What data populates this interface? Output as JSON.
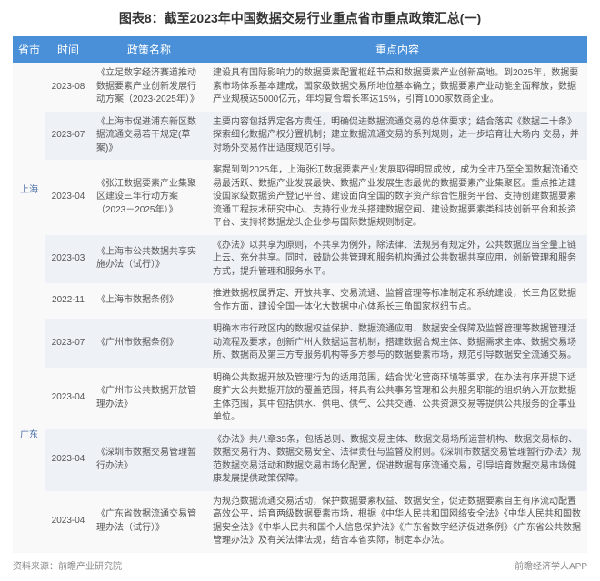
{
  "title": "图表8：截至2023年中国数据交易行业重点省市重点政策汇总(一)",
  "headers": {
    "province": "省市",
    "time": "时间",
    "policy": "政策名称",
    "content": "重点内容"
  },
  "provinces": {
    "shanghai": "上海",
    "guangdong": "广东"
  },
  "rows": [
    {
      "time": "2023-08",
      "policy": "《立足数字经济赛道推动数据要素产业创新发展行动方案（2023-2025年）》",
      "content": "建设具有国际影响力的数据要素配置枢纽节点和数据要素产业创新高地。到2025年，数据要素市场体系基本建成，国家级数据交易所地位基本确立；数据要素产业动能全面释放，数据产业规模达5000亿元，年均复合增长率达15%，引育1000家数商企业。",
      "shade": "light"
    },
    {
      "time": "2023-07",
      "policy": "《上海市促进浦东新区数据流通交易若干规定(草案)》",
      "content": "主要内容包括界定各方责任，明确促进数据流通交易的总体要求；结合落实《数据二十条》探索细化数据产权分置机制；建立数据流通交易的系列规则，进一步培育壮大场内 交易，并对场外交易作出适度规范引导。",
      "shade": "dark"
    },
    {
      "time": "2023-04",
      "policy": "《张江数据要素产业集聚区建设三年行动方案（2023－2025年）》",
      "content": "案提到到2025年，上海张江数据要素产业发展取得明显成效，成为全市乃至全国数据流通交易最活跃、数据产业发展最快、数据产业发展生态最优的数据要素产业集聚区。重点推进建设国家级数据资产登记平台、建设面向全国的数字资产综合性服务平台、支持创建数据要素流通工程技术研究中心、支持行业龙头搭建数据空间、建设数据要素类科技创新平台和投资平台、支持将数据龙头企业参与国际数据规则制定。",
      "shade": "light"
    },
    {
      "time": "2023-03",
      "policy": "《上海市公共数据共享实施办法（试行）》",
      "content": "《办法》以共享为原则，不共享为例外，除法律、法规另有规定外，公共数据应当全量上链上云、充分共享。同时，鼓励公共管理和服务机构通过公共数据共享应用，创新管理和服务方式，提升管理和服务水平。",
      "shade": "dark"
    },
    {
      "time": "2022-11",
      "policy": "《上海市数据条例》",
      "content": "推进数据权属界定、开放共享、交易流通、监督管理等标准制定和系统建设，长三角区数据合作方面，建设全国一体化大数据中心体系长三角国家枢纽节点。",
      "shade": "light"
    },
    {
      "time": "2023-07",
      "policy": "《广州市数据条例》",
      "content": "明确本市行政区内的数据权益保护、数据流通应用、数据安全保障及监督管理等数据管理活动流程及要求，创新广州大数据运营机制，搭建数据合规主体、数据需求主体、数据交易场所、数据商及第三方专服务机构等多方参与的数据要素市场，规范引导数据安全流通交易。",
      "shade": "dark"
    },
    {
      "time": "2023-04",
      "policy": "《广州市公共数据开放管理办法》",
      "content": "明确公共数据开放及管理行为的适用范围，结合优化营商环境等要求，在办法有序开提下适度扩大公共数据开放的覆盖范围，将具有公共事务管理和公共服务职能的组织纳入开放数据主体范围，其中包括供水、供电、供气、公共交通、公共资源交易等提供公共服务的企事业单位。",
      "shade": "light"
    },
    {
      "time": "2023-04",
      "policy": "《深圳市数据交易管理暂行办法》",
      "content": "《办法》共八章35条，包括总则、数据交易主体、数据交易场所运营机构、数据交易标的、数据交易行为、数据交易安全、法律责任与监督及附则。《深圳市数据交易管理暂行办法》规范数据交易活动和数据交易市场化配置，促进数据有序流通交易，引导培育数据交易市场健康发展提供政策保障。",
      "shade": "dark"
    },
    {
      "time": "2023-04",
      "policy": "《广东省数据流通交易管理办法（试行）》",
      "content": "为规范数据流通交易活动，保护数据要素权益、数据安全，促进数据要素自主有序流动配置高效公平，培育两级数据要素市场，根据《中华人民共和国网络安全法》《中华人民共和国数据安全法》《中华人民共和国个人信息保护法》《广东省数字经济促进条例》《广东省公共数据管理办法》及有关法律法规，结合本省实际，制定本办法。",
      "shade": "light"
    }
  ],
  "footer": {
    "left": "资料来源：前瞻产业研究院",
    "right": "前瞻经济学人APP"
  }
}
